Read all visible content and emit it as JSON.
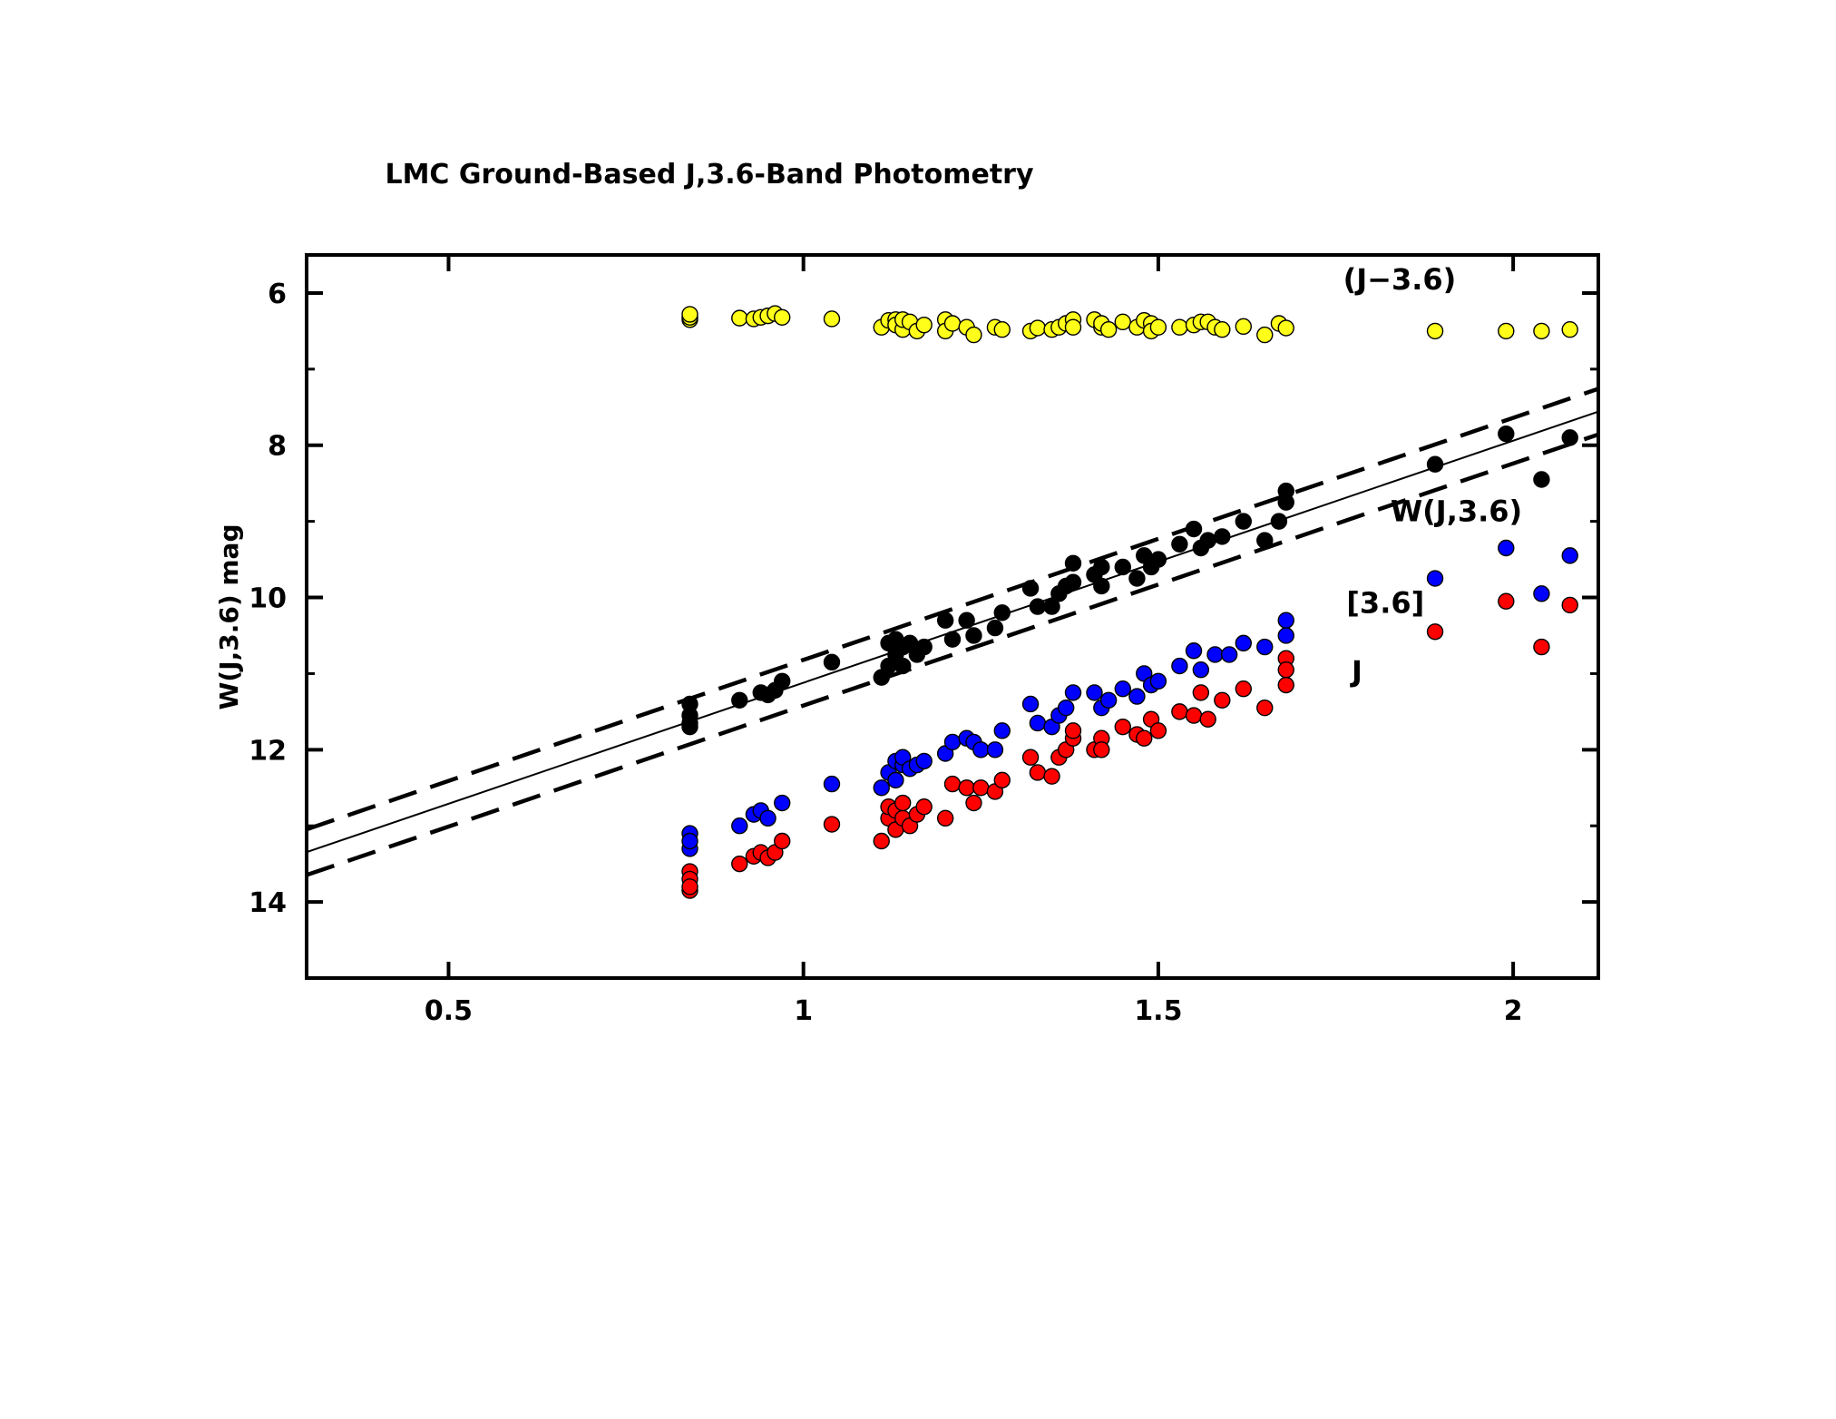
{
  "chart_data": {
    "type": "scatter",
    "title": "LMC Ground-Based J,3.6-Band Photometry",
    "xlabel": "",
    "ylabel": "W(J,3.6) mag",
    "xlim": [
      0.3,
      2.12
    ],
    "ylim": [
      15,
      5.5
    ],
    "y_inverted": true,
    "x_ticks": [
      0.5,
      1,
      1.5,
      2
    ],
    "x_tick_labels": [
      "0.5",
      "1",
      "1.5",
      "2"
    ],
    "y_ticks": [
      6,
      8,
      10,
      12,
      14
    ],
    "y_tick_labels": [
      "6",
      "8",
      "10",
      "12",
      "14"
    ],
    "annotations": [
      {
        "text": "(J−3.6)",
        "x": 1.84,
        "y": 5.95
      },
      {
        "text": "W(J,3.6)",
        "x": 1.92,
        "y": 9.0
      },
      {
        "text": "[3.6]",
        "x": 1.82,
        "y": 10.2
      },
      {
        "text": "J",
        "x": 1.78,
        "y": 11.1
      }
    ],
    "fit_line": {
      "slope": -3.18,
      "intercept": 14.3,
      "offsets": [
        -0.3,
        0.3
      ]
    },
    "series": [
      {
        "color": "#ffff1a",
        "x": [
          0.84,
          0.84,
          0.84,
          0.91,
          0.93,
          0.94,
          0.95,
          0.96,
          0.97,
          1.04,
          1.11,
          1.12,
          1.13,
          1.13,
          1.14,
          1.14,
          1.15,
          1.16,
          1.17,
          1.2,
          1.2,
          1.21,
          1.23,
          1.24,
          1.27,
          1.28,
          1.32,
          1.33,
          1.35,
          1.36,
          1.37,
          1.38,
          1.38,
          1.41,
          1.42,
          1.42,
          1.43,
          1.45,
          1.47,
          1.48,
          1.49,
          1.49,
          1.5,
          1.53,
          1.55,
          1.56,
          1.57,
          1.58,
          1.59,
          1.62,
          1.65,
          1.67,
          1.68,
          1.89,
          1.99,
          2.04,
          2.08
        ],
        "y": [
          6.35,
          6.32,
          6.28,
          6.33,
          6.34,
          6.32,
          6.3,
          6.27,
          6.32,
          6.34,
          6.45,
          6.36,
          6.35,
          6.42,
          6.48,
          6.35,
          6.38,
          6.5,
          6.42,
          6.35,
          6.5,
          6.4,
          6.45,
          6.55,
          6.45,
          6.48,
          6.5,
          6.46,
          6.48,
          6.45,
          6.4,
          6.35,
          6.45,
          6.35,
          6.45,
          6.4,
          6.48,
          6.38,
          6.45,
          6.36,
          6.4,
          6.5,
          6.45,
          6.45,
          6.42,
          6.38,
          6.38,
          6.45,
          6.48,
          6.44,
          6.55,
          6.4,
          6.46,
          6.5,
          6.5,
          6.5,
          6.48
        ]
      },
      {
        "color": "#000000",
        "x": [
          0.84,
          0.84,
          0.84,
          0.84,
          0.91,
          0.94,
          0.95,
          0.96,
          0.97,
          1.04,
          1.11,
          1.12,
          1.12,
          1.13,
          1.13,
          1.14,
          1.14,
          1.15,
          1.16,
          1.17,
          1.2,
          1.21,
          1.23,
          1.24,
          1.27,
          1.28,
          1.32,
          1.33,
          1.35,
          1.36,
          1.37,
          1.38,
          1.38,
          1.41,
          1.42,
          1.42,
          1.45,
          1.47,
          1.48,
          1.49,
          1.5,
          1.53,
          1.55,
          1.56,
          1.57,
          1.59,
          1.62,
          1.65,
          1.67,
          1.68,
          1.68,
          1.89,
          1.99,
          2.04,
          2.08
        ],
        "y": [
          11.4,
          11.55,
          11.7,
          11.65,
          11.35,
          11.25,
          11.28,
          11.22,
          11.1,
          10.85,
          11.05,
          10.9,
          10.6,
          10.75,
          10.55,
          10.65,
          10.9,
          10.6,
          10.75,
          10.65,
          10.3,
          10.55,
          10.3,
          10.5,
          10.4,
          10.2,
          9.88,
          10.12,
          10.12,
          9.95,
          9.85,
          9.55,
          9.8,
          9.7,
          9.6,
          9.85,
          9.6,
          9.75,
          9.45,
          9.6,
          9.5,
          9.3,
          9.1,
          9.35,
          9.25,
          9.2,
          9.0,
          9.25,
          9.0,
          8.75,
          8.6,
          8.25,
          7.85,
          8.45,
          7.9
        ]
      },
      {
        "color": "#0000ff",
        "x": [
          0.84,
          0.84,
          0.84,
          0.91,
          0.93,
          0.94,
          0.95,
          0.97,
          1.04,
          1.11,
          1.12,
          1.13,
          1.13,
          1.14,
          1.14,
          1.15,
          1.16,
          1.17,
          1.2,
          1.21,
          1.23,
          1.24,
          1.25,
          1.27,
          1.28,
          1.32,
          1.33,
          1.35,
          1.36,
          1.37,
          1.38,
          1.41,
          1.42,
          1.43,
          1.45,
          1.47,
          1.48,
          1.49,
          1.5,
          1.53,
          1.55,
          1.56,
          1.58,
          1.6,
          1.62,
          1.65,
          1.68,
          1.68,
          1.89,
          1.99,
          2.04,
          2.08
        ],
        "y": [
          13.3,
          13.1,
          13.2,
          13.0,
          12.85,
          12.8,
          12.9,
          12.7,
          12.45,
          12.5,
          12.3,
          12.15,
          12.4,
          12.2,
          12.1,
          12.25,
          12.2,
          12.15,
          12.05,
          11.9,
          11.85,
          11.9,
          12.0,
          12.0,
          11.75,
          11.4,
          11.65,
          11.7,
          11.55,
          11.45,
          11.25,
          11.25,
          11.45,
          11.35,
          11.2,
          11.3,
          11.0,
          11.15,
          11.1,
          10.9,
          10.7,
          10.95,
          10.75,
          10.75,
          10.6,
          10.65,
          10.3,
          10.5,
          9.75,
          9.35,
          9.95,
          9.45
        ]
      },
      {
        "color": "#ff0000",
        "x": [
          0.84,
          0.84,
          0.84,
          0.84,
          0.91,
          0.93,
          0.94,
          0.95,
          0.96,
          0.97,
          1.04,
          1.11,
          1.12,
          1.12,
          1.13,
          1.13,
          1.14,
          1.14,
          1.15,
          1.16,
          1.17,
          1.2,
          1.21,
          1.23,
          1.24,
          1.25,
          1.27,
          1.28,
          1.32,
          1.33,
          1.35,
          1.36,
          1.37,
          1.38,
          1.38,
          1.41,
          1.42,
          1.42,
          1.45,
          1.47,
          1.48,
          1.49,
          1.5,
          1.53,
          1.55,
          1.56,
          1.57,
          1.59,
          1.62,
          1.65,
          1.68,
          1.68,
          1.68,
          1.89,
          1.99,
          2.04,
          2.08
        ],
        "y": [
          13.85,
          13.6,
          13.7,
          13.8,
          13.5,
          13.4,
          13.35,
          13.42,
          13.35,
          13.2,
          12.98,
          13.2,
          12.9,
          12.75,
          12.8,
          13.05,
          12.9,
          12.7,
          13.0,
          12.85,
          12.75,
          12.9,
          12.45,
          12.5,
          12.7,
          12.5,
          12.55,
          12.4,
          12.1,
          12.3,
          12.35,
          12.1,
          12.0,
          11.85,
          11.75,
          12.0,
          11.85,
          12.0,
          11.7,
          11.8,
          11.85,
          11.6,
          11.75,
          11.5,
          11.55,
          11.25,
          11.6,
          11.35,
          11.2,
          11.45,
          11.15,
          10.8,
          10.95,
          10.45,
          10.05,
          10.65,
          10.1
        ]
      }
    ]
  }
}
